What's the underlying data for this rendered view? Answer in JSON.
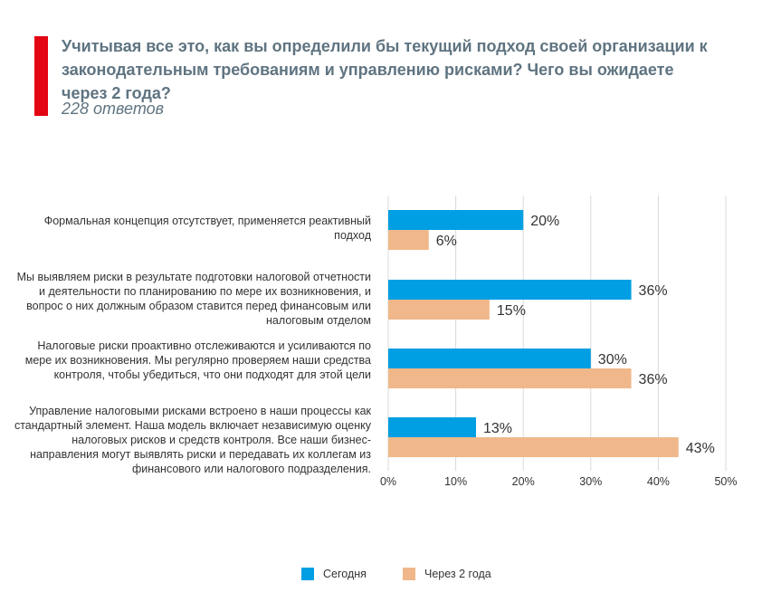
{
  "header": {
    "title": "Учитывая все это, как вы определили бы текущий подход своей организации к законодательным требованиям и управлению рисками? Чего вы ожидаете через 2 года?",
    "subtitle": "228 ответов"
  },
  "colors": {
    "accent": "#e30613",
    "series_today": "#009fe3",
    "series_future": "#f0b88a",
    "title_text": "#5f7481",
    "grid": "#d9d9d9"
  },
  "chart_data": {
    "type": "bar",
    "orientation": "horizontal",
    "categories": [
      "Формальная концепция отсутствует, применяется реактивный подход",
      "Мы выявляем риски в результате подготовки налоговой отчетности и деятельности по планированию по мере их возникновения, и вопрос о них должным образом ставится перед финансовым или налоговым отделом",
      "Налоговые риски проактивно отслеживаются и усиливаются по мере их возникновения. Мы регулярно проверяем наши средства контроля, чтобы убедиться, что они подходят для этой цели",
      "Управление налоговыми рисками встроено в наши процессы как стандартный элемент. Наша модель включает независимую оценку налоговых рисков и средств контроля. Все наши бизнес-направления могут выявлять риски и передавать их коллегам из финансового или налогового подразделения."
    ],
    "series": [
      {
        "name": "Сегодня",
        "values": [
          20,
          36,
          30,
          13
        ],
        "labels": [
          "20%",
          "36%",
          "30%",
          "13%"
        ]
      },
      {
        "name": "Через 2 года",
        "values": [
          6,
          15,
          36,
          43
        ],
        "labels": [
          "6%",
          "15%",
          "36%",
          "43%"
        ]
      }
    ],
    "xlim": [
      0,
      50
    ],
    "xticks": [
      "0%",
      "10%",
      "20%",
      "30%",
      "40%",
      "50%"
    ],
    "xtick_values": [
      0,
      10,
      20,
      30,
      40,
      50
    ],
    "grid": true,
    "legend_position": "bottom"
  }
}
